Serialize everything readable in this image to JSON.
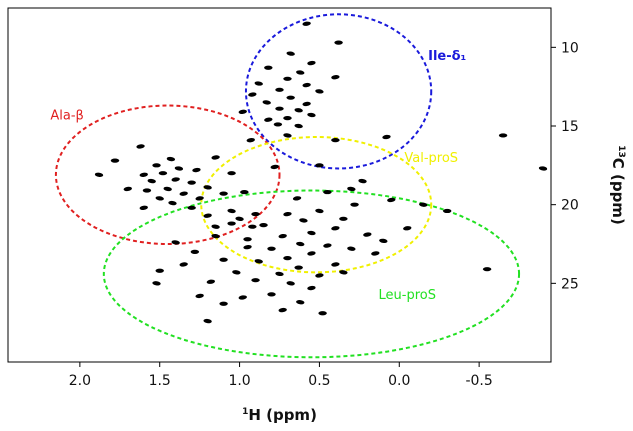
{
  "chart_data": {
    "type": "scatter",
    "title": "",
    "xlabel": {
      "sup": "1",
      "text": "H (ppm)"
    },
    "ylabel": {
      "sup": "13",
      "text": "C (ppm)"
    },
    "xlim": [
      2.45,
      -0.95
    ],
    "ylim": [
      7.5,
      30.0
    ],
    "x_reversed": true,
    "y_reversed": true,
    "xticks": [
      {
        "value": 2.0,
        "label": "2.0"
      },
      {
        "value": 1.5,
        "label": "1.5"
      },
      {
        "value": 1.0,
        "label": "1.0"
      },
      {
        "value": 0.5,
        "label": "0.5"
      },
      {
        "value": 0.0,
        "label": "0.0"
      },
      {
        "value": -0.5,
        "label": "-0.5"
      }
    ],
    "yticks": [
      {
        "value": 10,
        "label": "10"
      },
      {
        "value": 15,
        "label": "15"
      },
      {
        "value": 20,
        "label": "20"
      },
      {
        "value": 25,
        "label": "25"
      }
    ],
    "grid": false,
    "regions": [
      {
        "label": "Ile-δ₁",
        "color": "#1a1adb",
        "bold": true,
        "cx": 0.38,
        "cy": 12.8,
        "rx": 0.58,
        "ry": 4.9,
        "label_x": -0.3,
        "label_y": 10.8
      },
      {
        "label": "Ala-β",
        "color": "#e02020",
        "bold": false,
        "cx": 1.45,
        "cy": 18.1,
        "rx": 0.7,
        "ry": 4.4,
        "label_x": 2.08,
        "label_y": 14.6
      },
      {
        "label": "Val-proS",
        "color": "#f0f000",
        "bold": false,
        "cx": 0.52,
        "cy": 20.0,
        "rx": 0.72,
        "ry": 4.3,
        "label_x": -0.2,
        "label_y": 17.3
      },
      {
        "label": "Leu-proS",
        "color": "#22e022",
        "bold": false,
        "cx": 0.55,
        "cy": 24.4,
        "rx": 1.3,
        "ry": 5.3,
        "label_x": -0.05,
        "label_y": 26.0
      }
    ],
    "peaks": [
      [
        0.58,
        8.5
      ],
      [
        0.38,
        9.7
      ],
      [
        0.68,
        10.4
      ],
      [
        0.55,
        11.0
      ],
      [
        0.82,
        11.3
      ],
      [
        0.62,
        11.6
      ],
      [
        0.4,
        11.9
      ],
      [
        0.7,
        12.0
      ],
      [
        0.88,
        12.3
      ],
      [
        0.58,
        12.4
      ],
      [
        0.75,
        12.7
      ],
      [
        0.5,
        12.8
      ],
      [
        0.92,
        13.0
      ],
      [
        0.68,
        13.2
      ],
      [
        0.83,
        13.5
      ],
      [
        0.58,
        13.6
      ],
      [
        0.75,
        13.9
      ],
      [
        0.63,
        14.0
      ],
      [
        0.98,
        14.1
      ],
      [
        0.7,
        14.5
      ],
      [
        0.55,
        14.3
      ],
      [
        0.82,
        14.6
      ],
      [
        0.76,
        14.9
      ],
      [
        0.63,
        15.0
      ],
      [
        0.08,
        15.7
      ],
      [
        0.4,
        15.9
      ],
      [
        0.7,
        15.6
      ],
      [
        0.93,
        15.9
      ],
      [
        -0.65,
        15.6
      ],
      [
        -0.9,
        17.7
      ],
      [
        1.62,
        16.3
      ],
      [
        1.78,
        17.2
      ],
      [
        1.43,
        17.1
      ],
      [
        1.15,
        17.0
      ],
      [
        1.52,
        17.5
      ],
      [
        1.38,
        17.7
      ],
      [
        1.27,
        17.8
      ],
      [
        1.05,
        18.0
      ],
      [
        1.88,
        18.1
      ],
      [
        1.6,
        18.1
      ],
      [
        1.48,
        18.0
      ],
      [
        1.55,
        18.5
      ],
      [
        1.4,
        18.4
      ],
      [
        1.3,
        18.6
      ],
      [
        1.2,
        18.9
      ],
      [
        1.7,
        19.0
      ],
      [
        1.58,
        19.1
      ],
      [
        1.45,
        19.0
      ],
      [
        1.35,
        19.3
      ],
      [
        1.1,
        19.3
      ],
      [
        1.5,
        19.6
      ],
      [
        1.25,
        19.6
      ],
      [
        0.97,
        19.2
      ],
      [
        1.42,
        19.9
      ],
      [
        1.6,
        20.2
      ],
      [
        1.3,
        20.2
      ],
      [
        1.05,
        20.4
      ],
      [
        1.2,
        20.7
      ],
      [
        0.9,
        20.6
      ],
      [
        1.15,
        21.4
      ],
      [
        0.78,
        17.6
      ],
      [
        0.5,
        17.5
      ],
      [
        0.23,
        18.5
      ],
      [
        0.64,
        19.6
      ],
      [
        0.28,
        20.0
      ],
      [
        0.5,
        20.4
      ],
      [
        0.7,
        20.6
      ],
      [
        0.35,
        20.9
      ],
      [
        0.6,
        21.0
      ],
      [
        0.4,
        21.5
      ],
      [
        0.85,
        21.3
      ],
      [
        0.55,
        21.8
      ],
      [
        0.73,
        22.0
      ],
      [
        0.95,
        22.2
      ],
      [
        0.62,
        22.5
      ],
      [
        0.45,
        22.6
      ],
      [
        0.8,
        22.8
      ],
      [
        0.3,
        22.8
      ],
      [
        0.55,
        23.1
      ],
      [
        0.7,
        23.4
      ],
      [
        0.88,
        23.6
      ],
      [
        0.4,
        23.8
      ],
      [
        0.63,
        24.0
      ],
      [
        0.75,
        24.4
      ],
      [
        0.5,
        24.5
      ],
      [
        0.9,
        24.8
      ],
      [
        0.68,
        25.0
      ],
      [
        0.55,
        25.3
      ],
      [
        0.8,
        25.7
      ],
      [
        0.62,
        26.2
      ],
      [
        0.73,
        26.7
      ],
      [
        0.48,
        26.9
      ],
      [
        0.35,
        24.3
      ],
      [
        0.15,
        23.1
      ],
      [
        1.05,
        21.2
      ],
      [
        1.15,
        22.0
      ],
      [
        0.95,
        22.7
      ],
      [
        1.1,
        23.5
      ],
      [
        1.02,
        24.3
      ],
      [
        1.18,
        24.9
      ],
      [
        1.28,
        23.0
      ],
      [
        1.4,
        22.4
      ],
      [
        1.35,
        23.8
      ],
      [
        1.5,
        24.2
      ],
      [
        1.52,
        25.0
      ],
      [
        1.25,
        25.8
      ],
      [
        1.1,
        26.3
      ],
      [
        1.2,
        27.4
      ],
      [
        0.98,
        25.9
      ],
      [
        0.92,
        21.4
      ],
      [
        1.0,
        20.9
      ],
      [
        0.05,
        19.7
      ],
      [
        -0.3,
        20.4
      ],
      [
        -0.15,
        20.0
      ],
      [
        -0.05,
        21.5
      ],
      [
        -0.55,
        24.1
      ],
      [
        0.1,
        22.3
      ],
      [
        0.2,
        21.9
      ],
      [
        0.45,
        19.2
      ],
      [
        0.3,
        19.0
      ]
    ]
  }
}
